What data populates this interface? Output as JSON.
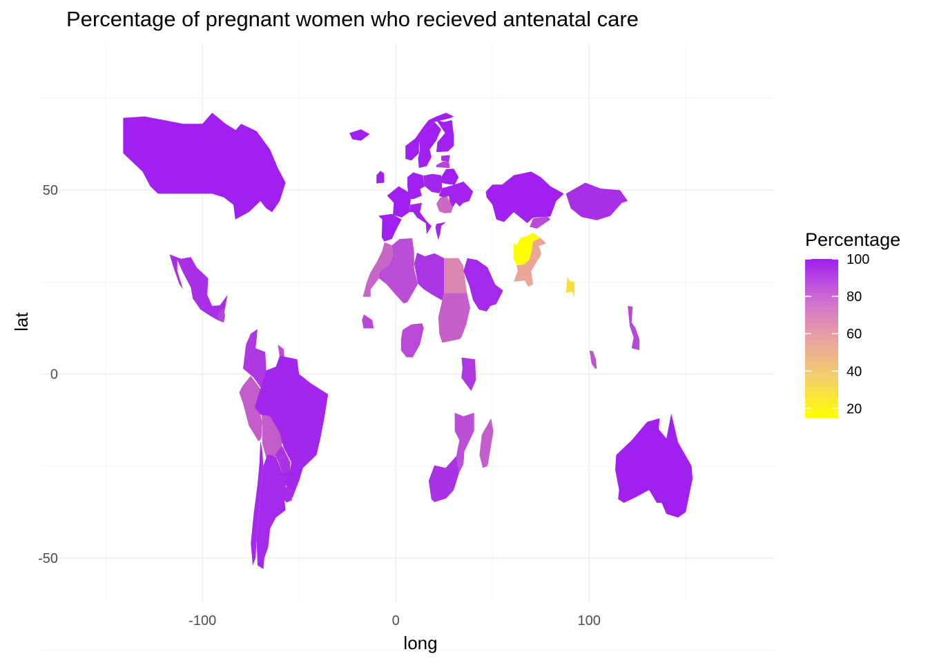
{
  "title": "Percentage of pregnant women who recieved antenatal care",
  "axes": {
    "xlabel": "long",
    "ylabel": "lat",
    "x_ticks": [
      -100,
      0,
      100
    ],
    "y_ticks": [
      50,
      0,
      -50
    ],
    "xlim": [
      -184,
      196
    ],
    "ylim": [
      -62,
      90
    ]
  },
  "legend": {
    "title": "Percentage",
    "ticks": [
      100,
      80,
      60,
      40,
      20
    ],
    "range": [
      15,
      100
    ],
    "colors": {
      "low": "#ffff00",
      "mid": "#e9a1a0",
      "high": "#a020f0"
    }
  },
  "chart_data": {
    "type": "map",
    "title": "Percentage of pregnant women who recieved antenatal care",
    "xlabel": "long",
    "ylabel": "lat",
    "xlim": [
      -184,
      196
    ],
    "ylim": [
      -62,
      90
    ],
    "grid": true,
    "legend_position": "right",
    "fill_variable": "Percentage",
    "regions": [
      {
        "name": "Canada",
        "value": 100
      },
      {
        "name": "Mexico",
        "value": 95
      },
      {
        "name": "Guatemala",
        "value": 88
      },
      {
        "name": "Colombia",
        "value": 92
      },
      {
        "name": "Guyana",
        "value": 85
      },
      {
        "name": "Peru",
        "value": 80
      },
      {
        "name": "Bolivia",
        "value": 80
      },
      {
        "name": "Brazil",
        "value": 98
      },
      {
        "name": "Paraguay",
        "value": 94
      },
      {
        "name": "Argentina",
        "value": 97
      },
      {
        "name": "Chile",
        "value": 97
      },
      {
        "name": "Uruguay",
        "value": 96
      },
      {
        "name": "Iceland",
        "value": 100
      },
      {
        "name": "Ireland",
        "value": 100
      },
      {
        "name": "France",
        "value": 100
      },
      {
        "name": "Spain",
        "value": 100
      },
      {
        "name": "Italy",
        "value": 99
      },
      {
        "name": "Germany",
        "value": 100
      },
      {
        "name": "Poland",
        "value": 98
      },
      {
        "name": "Norway",
        "value": 100
      },
      {
        "name": "Sweden",
        "value": 100
      },
      {
        "name": "Finland",
        "value": 100
      },
      {
        "name": "Estonia",
        "value": 95
      },
      {
        "name": "Latvia",
        "value": 88
      },
      {
        "name": "Belarus",
        "value": 100
      },
      {
        "name": "Ukraine",
        "value": 99
      },
      {
        "name": "Romania",
        "value": 76
      },
      {
        "name": "Greece",
        "value": 98
      },
      {
        "name": "Western Sahara",
        "value": 77
      },
      {
        "name": "Morocco",
        "value": 77
      },
      {
        "name": "Algeria",
        "value": 85
      },
      {
        "name": "Libya",
        "value": 93
      },
      {
        "name": "Egypt",
        "value": 66
      },
      {
        "name": "Sudan",
        "value": 79
      },
      {
        "name": "Saudi Arabia",
        "value": 97
      },
      {
        "name": "Nigeria",
        "value": 86
      },
      {
        "name": "Senegal",
        "value": 87
      },
      {
        "name": "Kenya",
        "value": 92
      },
      {
        "name": "Mozambique",
        "value": 85
      },
      {
        "name": "Madagascar",
        "value": 80
      },
      {
        "name": "South Africa",
        "value": 94
      },
      {
        "name": "Kazakhstan",
        "value": 100
      },
      {
        "name": "Mongolia",
        "value": 95
      },
      {
        "name": "Kyrgyzstan",
        "value": 86
      },
      {
        "name": "Afghanistan",
        "value": 16
      },
      {
        "name": "Pakistan",
        "value": 55
      },
      {
        "name": "Bangladesh",
        "value": 30
      },
      {
        "name": "Philippines",
        "value": 87
      },
      {
        "name": "Malaysia",
        "value": 83
      },
      {
        "name": "Australia",
        "value": 100
      }
    ]
  }
}
